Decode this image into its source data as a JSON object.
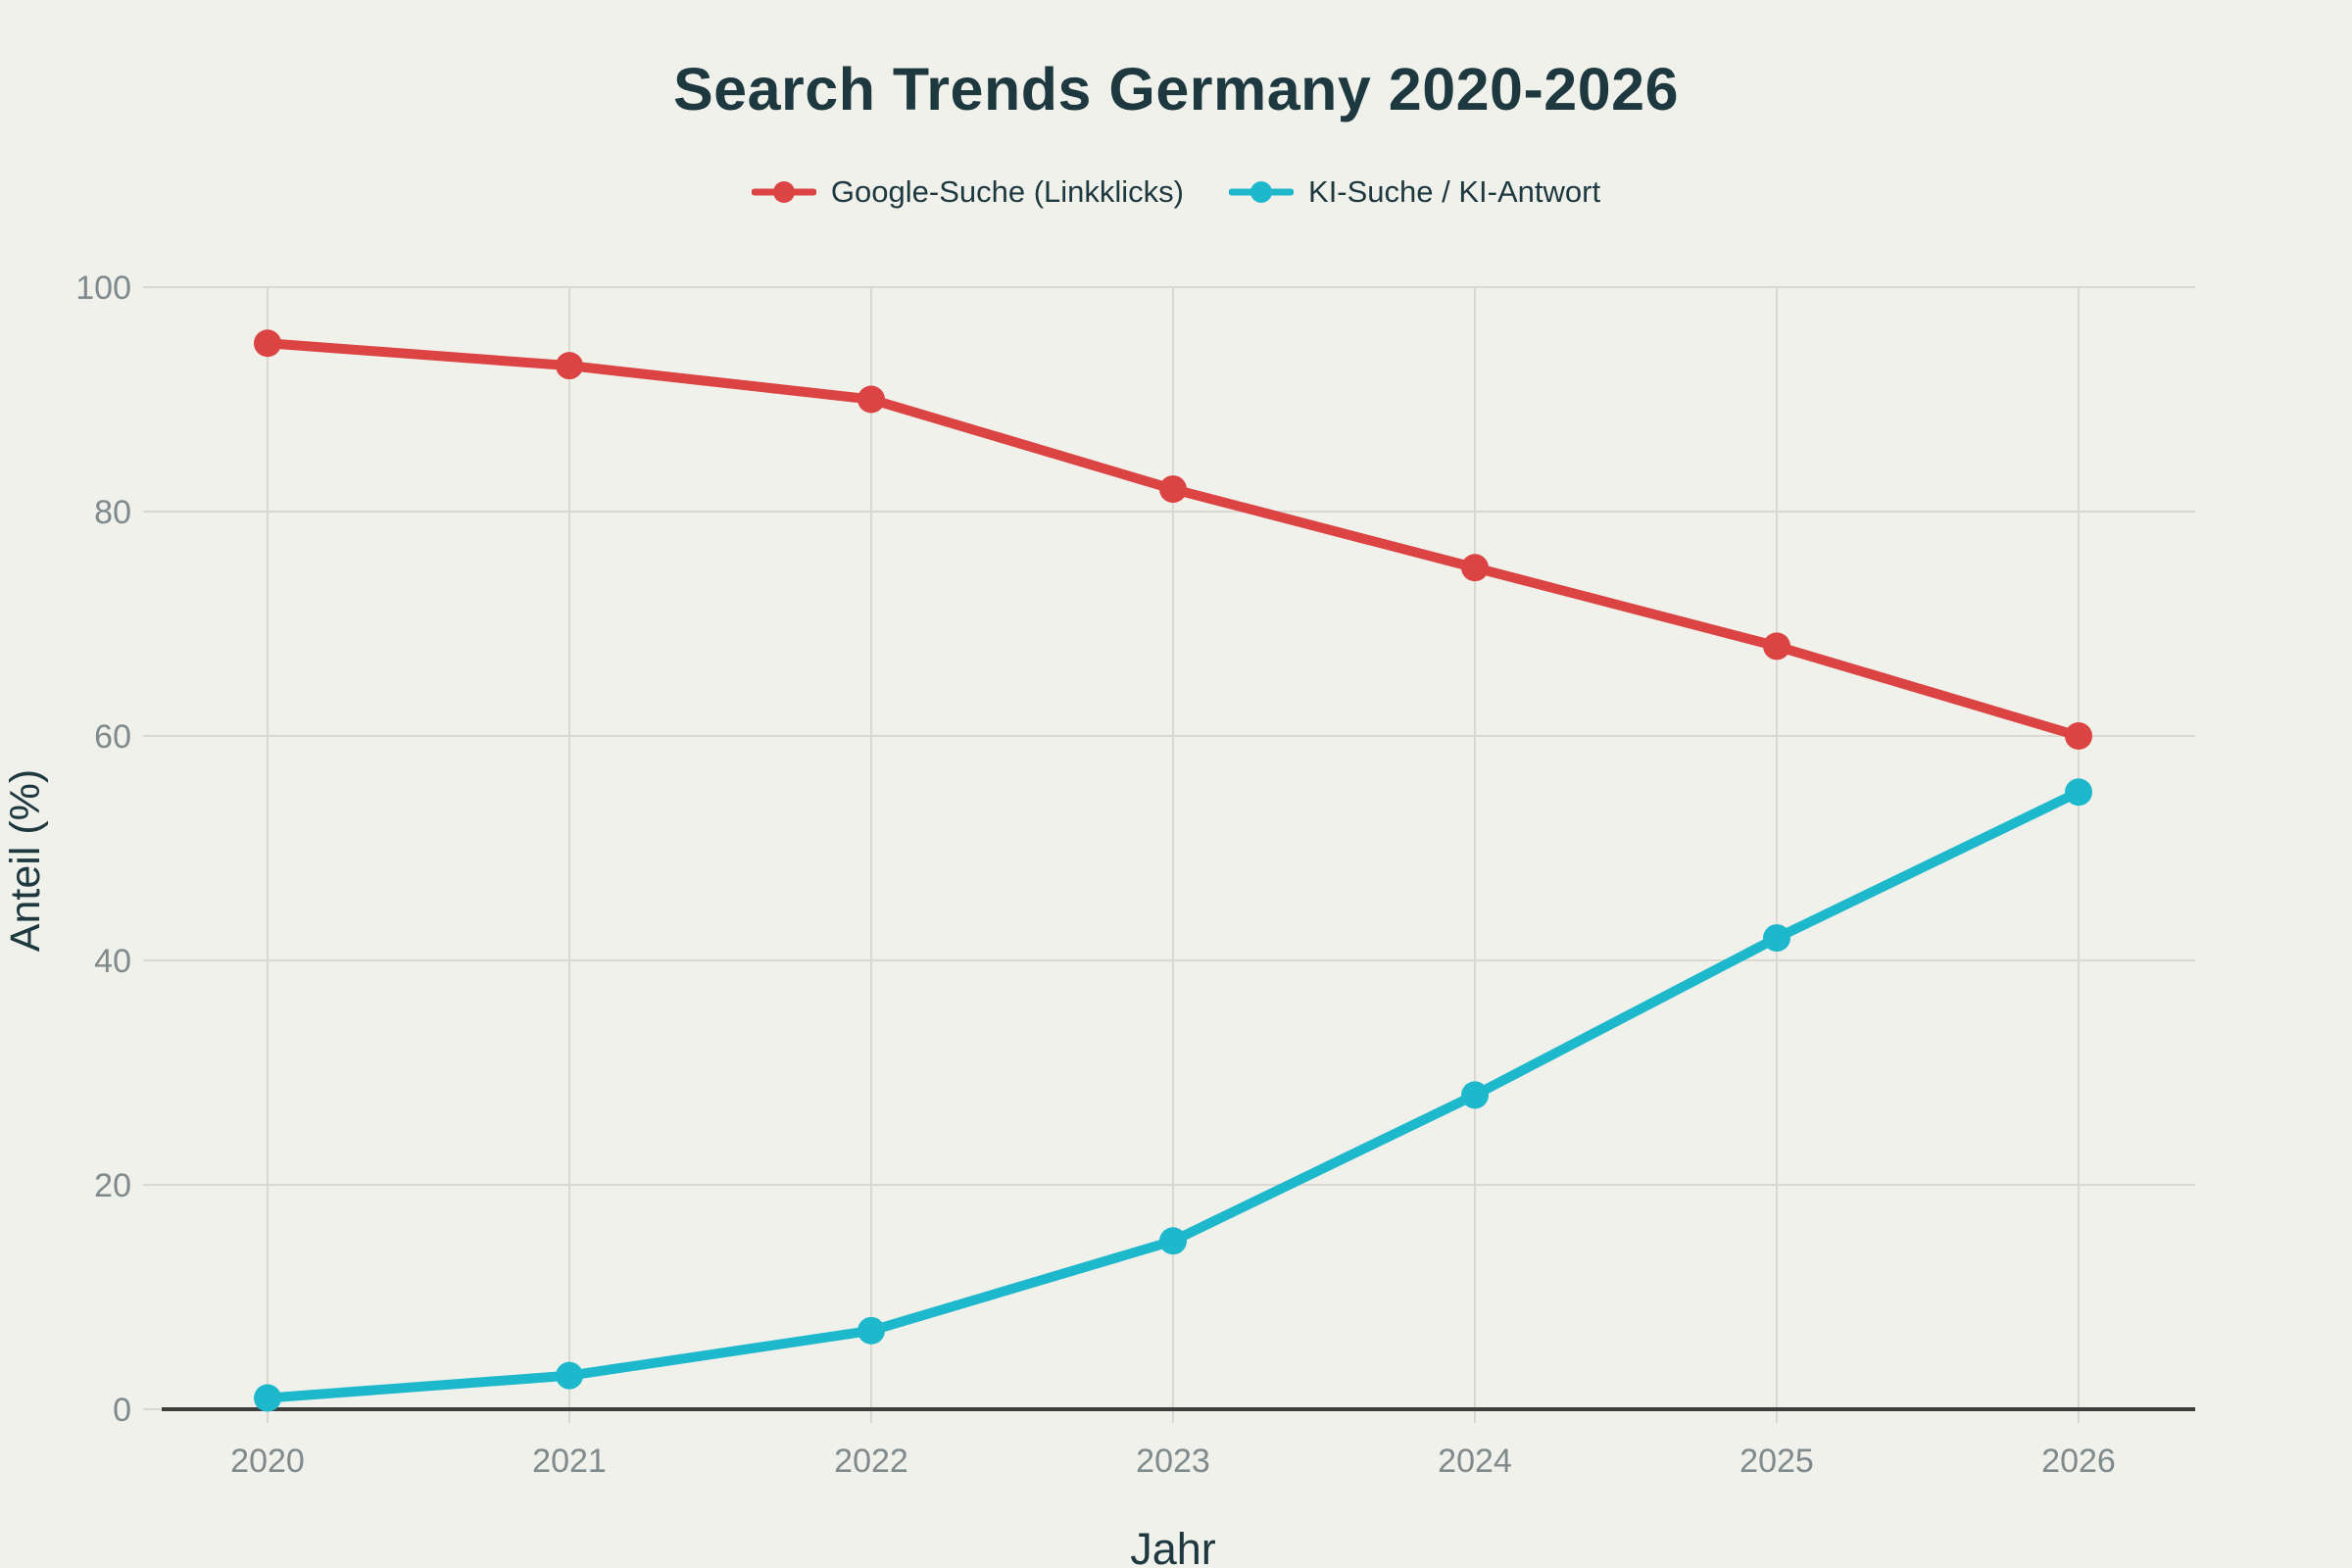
{
  "title": "Search Trends Germany 2020-2026",
  "legend": {
    "position": "top",
    "items": [
      {
        "label": "Google-Suche (Linkklicks)",
        "color": "#dc4343"
      },
      {
        "label": "KI-Suche / KI-Antwort",
        "color": "#1eb8cd"
      }
    ]
  },
  "chart_data": {
    "type": "line",
    "title": "Search Trends Germany 2020-2026",
    "xlabel": "Jahr",
    "ylabel": "Anteil (%)",
    "categories": [
      "2020",
      "2021",
      "2022",
      "2023",
      "2024",
      "2025",
      "2026"
    ],
    "series": [
      {
        "name": "Google-Suche (Linkklicks)",
        "color": "#dc4343",
        "values": [
          95,
          93,
          90,
          82,
          75,
          68,
          60
        ]
      },
      {
        "name": "KI-Suche / KI-Antwort",
        "color": "#1eb8cd",
        "values": [
          1,
          3,
          7,
          15,
          28,
          42,
          55
        ]
      }
    ],
    "ylim": [
      0,
      100
    ],
    "y_ticks": [
      0,
      20,
      40,
      60,
      80,
      100
    ],
    "grid": true,
    "legend_position": "top",
    "point_style": "circle"
  },
  "colors": {
    "background": "#f0f1ea",
    "gridline": "#d9d9d2",
    "axis_line": "#3e3e3c",
    "tick_text": "#7f8a8c",
    "heading_text": "#1e3840"
  }
}
